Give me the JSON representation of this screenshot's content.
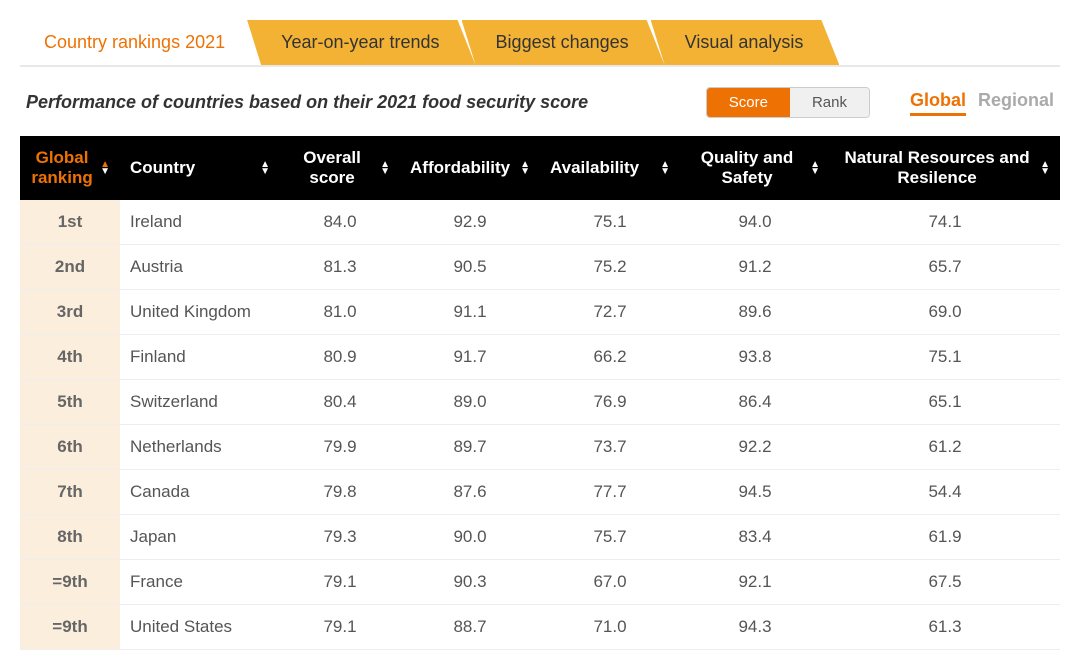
{
  "colors": {
    "accent": "#ee7203",
    "tab_bg": "#f3b233",
    "header_bg": "#000000",
    "rank_cell_bg": "#fceedd",
    "text_muted": "#aaaaaa",
    "row_border": "#eeeeee"
  },
  "tabs": [
    {
      "label": "Country rankings 2021",
      "active": true
    },
    {
      "label": "Year-on-year trends",
      "active": false
    },
    {
      "label": "Biggest changes",
      "active": false
    },
    {
      "label": "Visual analysis",
      "active": false
    }
  ],
  "subtitle": "Performance of countries based on their 2021 food security score",
  "toggle": {
    "options": [
      "Score",
      "Rank"
    ],
    "active": "Score"
  },
  "scope": {
    "options": [
      "Global",
      "Regional"
    ],
    "active": "Global"
  },
  "table": {
    "columns": [
      {
        "key": "rank",
        "label": "Global ranking",
        "sortable": true,
        "active_sort": true
      },
      {
        "key": "country",
        "label": "Country",
        "sortable": true
      },
      {
        "key": "overall",
        "label": "Overall score",
        "sortable": true
      },
      {
        "key": "afford",
        "label": "Affordability",
        "sortable": true
      },
      {
        "key": "avail",
        "label": "Availability",
        "sortable": true
      },
      {
        "key": "quality",
        "label": "Quality and Safety",
        "sortable": true
      },
      {
        "key": "natural",
        "label": "Natural Resources and Resilence",
        "sortable": true
      }
    ],
    "rows": [
      {
        "rank": "1st",
        "country": "Ireland",
        "overall": "84.0",
        "afford": "92.9",
        "avail": "75.1",
        "quality": "94.0",
        "natural": "74.1"
      },
      {
        "rank": "2nd",
        "country": "Austria",
        "overall": "81.3",
        "afford": "90.5",
        "avail": "75.2",
        "quality": "91.2",
        "natural": "65.7"
      },
      {
        "rank": "3rd",
        "country": "United Kingdom",
        "overall": "81.0",
        "afford": "91.1",
        "avail": "72.7",
        "quality": "89.6",
        "natural": "69.0"
      },
      {
        "rank": "4th",
        "country": "Finland",
        "overall": "80.9",
        "afford": "91.7",
        "avail": "66.2",
        "quality": "93.8",
        "natural": "75.1"
      },
      {
        "rank": "5th",
        "country": "Switzerland",
        "overall": "80.4",
        "afford": "89.0",
        "avail": "76.9",
        "quality": "86.4",
        "natural": "65.1"
      },
      {
        "rank": "6th",
        "country": "Netherlands",
        "overall": "79.9",
        "afford": "89.7",
        "avail": "73.7",
        "quality": "92.2",
        "natural": "61.2"
      },
      {
        "rank": "7th",
        "country": "Canada",
        "overall": "79.8",
        "afford": "87.6",
        "avail": "77.7",
        "quality": "94.5",
        "natural": "54.4"
      },
      {
        "rank": "8th",
        "country": "Japan",
        "overall": "79.3",
        "afford": "90.0",
        "avail": "75.7",
        "quality": "83.4",
        "natural": "61.9"
      },
      {
        "rank": "=9th",
        "country": "France",
        "overall": "79.1",
        "afford": "90.3",
        "avail": "67.0",
        "quality": "92.1",
        "natural": "67.5"
      },
      {
        "rank": "=9th",
        "country": "United States",
        "overall": "79.1",
        "afford": "88.7",
        "avail": "71.0",
        "quality": "94.3",
        "natural": "61.3"
      }
    ]
  }
}
